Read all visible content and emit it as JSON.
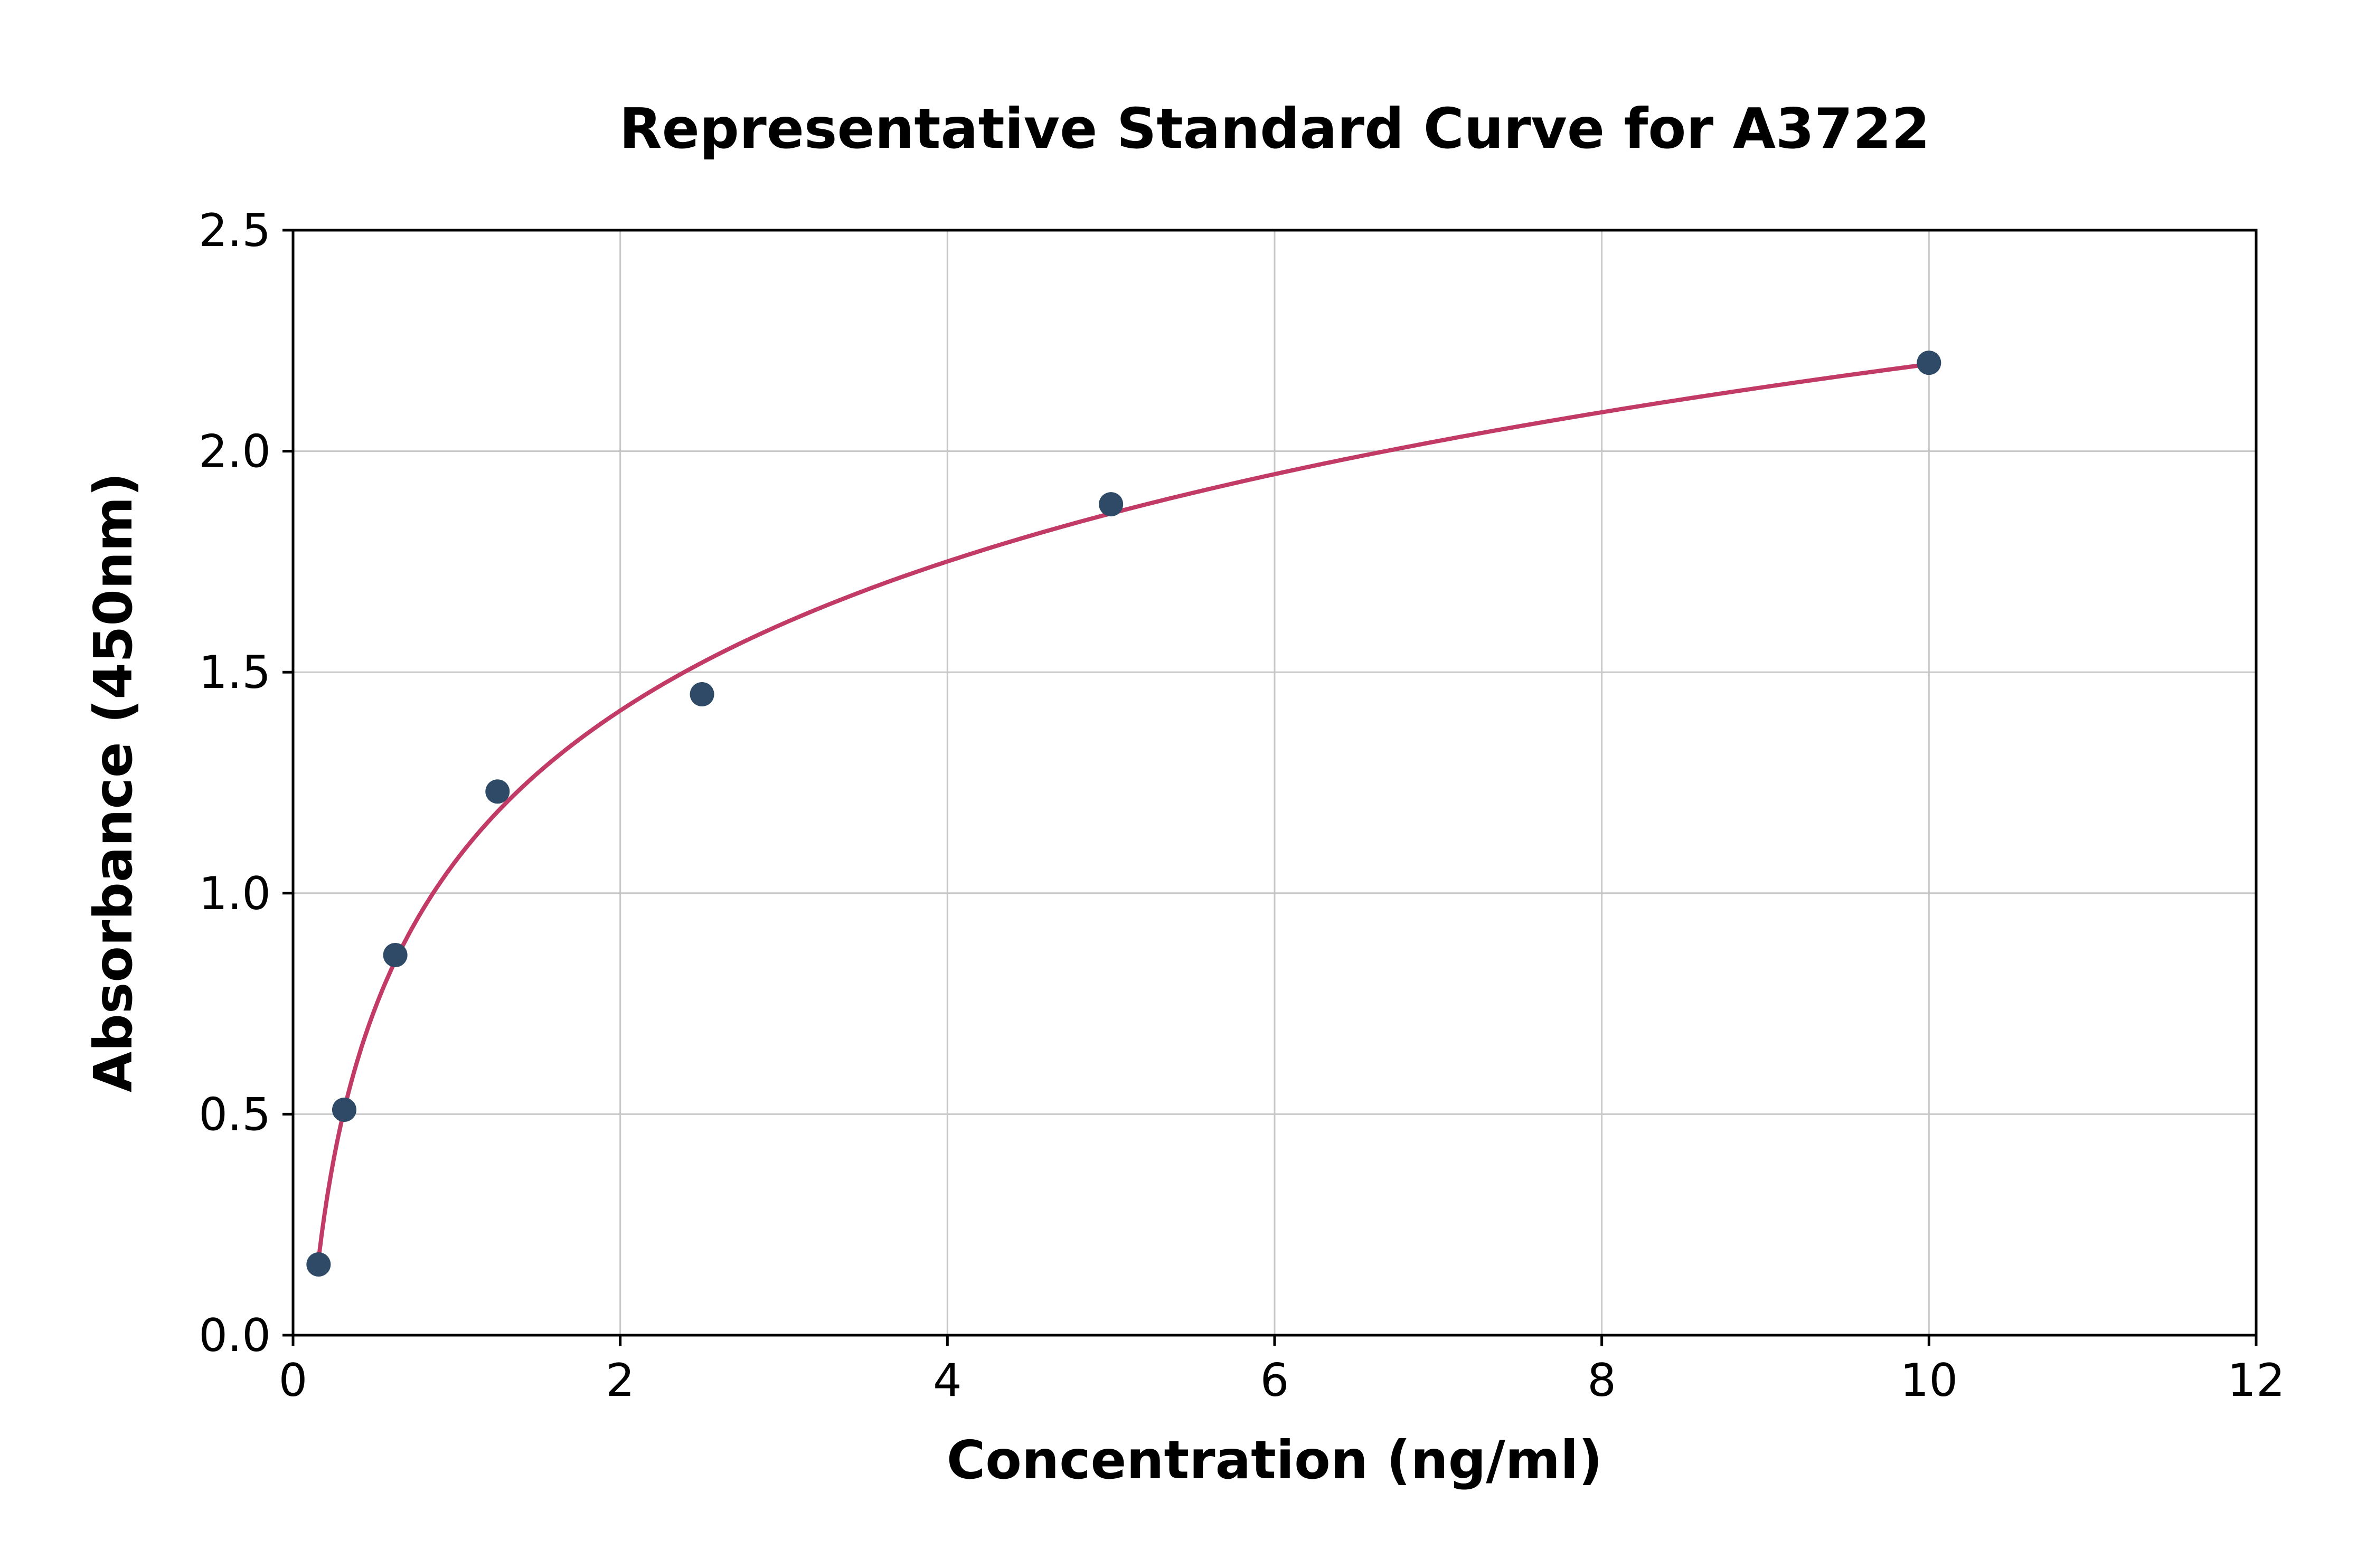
{
  "figure": {
    "title": "Representative Standard Curve for A3722",
    "x_label": "Concentration (ng/ml)",
    "y_label": "Absorbance (450nm)"
  },
  "chart_data": {
    "type": "scatter",
    "title": "Representative Standard Curve for A3722",
    "xlabel": "Concentration (ng/ml)",
    "ylabel": "Absorbance (450nm)",
    "xlim": [
      0,
      12
    ],
    "ylim": [
      0,
      2.5
    ],
    "x_ticks": [
      0,
      2,
      4,
      6,
      8,
      10,
      12
    ],
    "x_tick_labels": [
      "0",
      "2",
      "4",
      "6",
      "8",
      "10",
      "12"
    ],
    "y_ticks": [
      0,
      0.5,
      1.0,
      1.5,
      2.0,
      2.5
    ],
    "y_tick_labels": [
      "0.0",
      "0.5",
      "1.0",
      "1.5",
      "2.0",
      "2.5"
    ],
    "grid": true,
    "legend": "none",
    "series": [
      {
        "name": "standard-points",
        "type": "scatter",
        "color": "#2e4a66",
        "x": [
          0.156,
          0.313,
          0.625,
          1.25,
          2.5,
          5,
          10
        ],
        "y": [
          0.16,
          0.51,
          0.86,
          1.23,
          1.45,
          1.88,
          2.2
        ]
      },
      {
        "name": "fitted-curve",
        "type": "line",
        "color": "#c23b66",
        "fit": "log",
        "x_range": [
          0.156,
          10
        ]
      }
    ]
  },
  "colors": {
    "point": "#2e4a66",
    "curve": "#c23b66",
    "grid": "#c8c8c8",
    "spine": "#000000",
    "background": "#ffffff"
  }
}
